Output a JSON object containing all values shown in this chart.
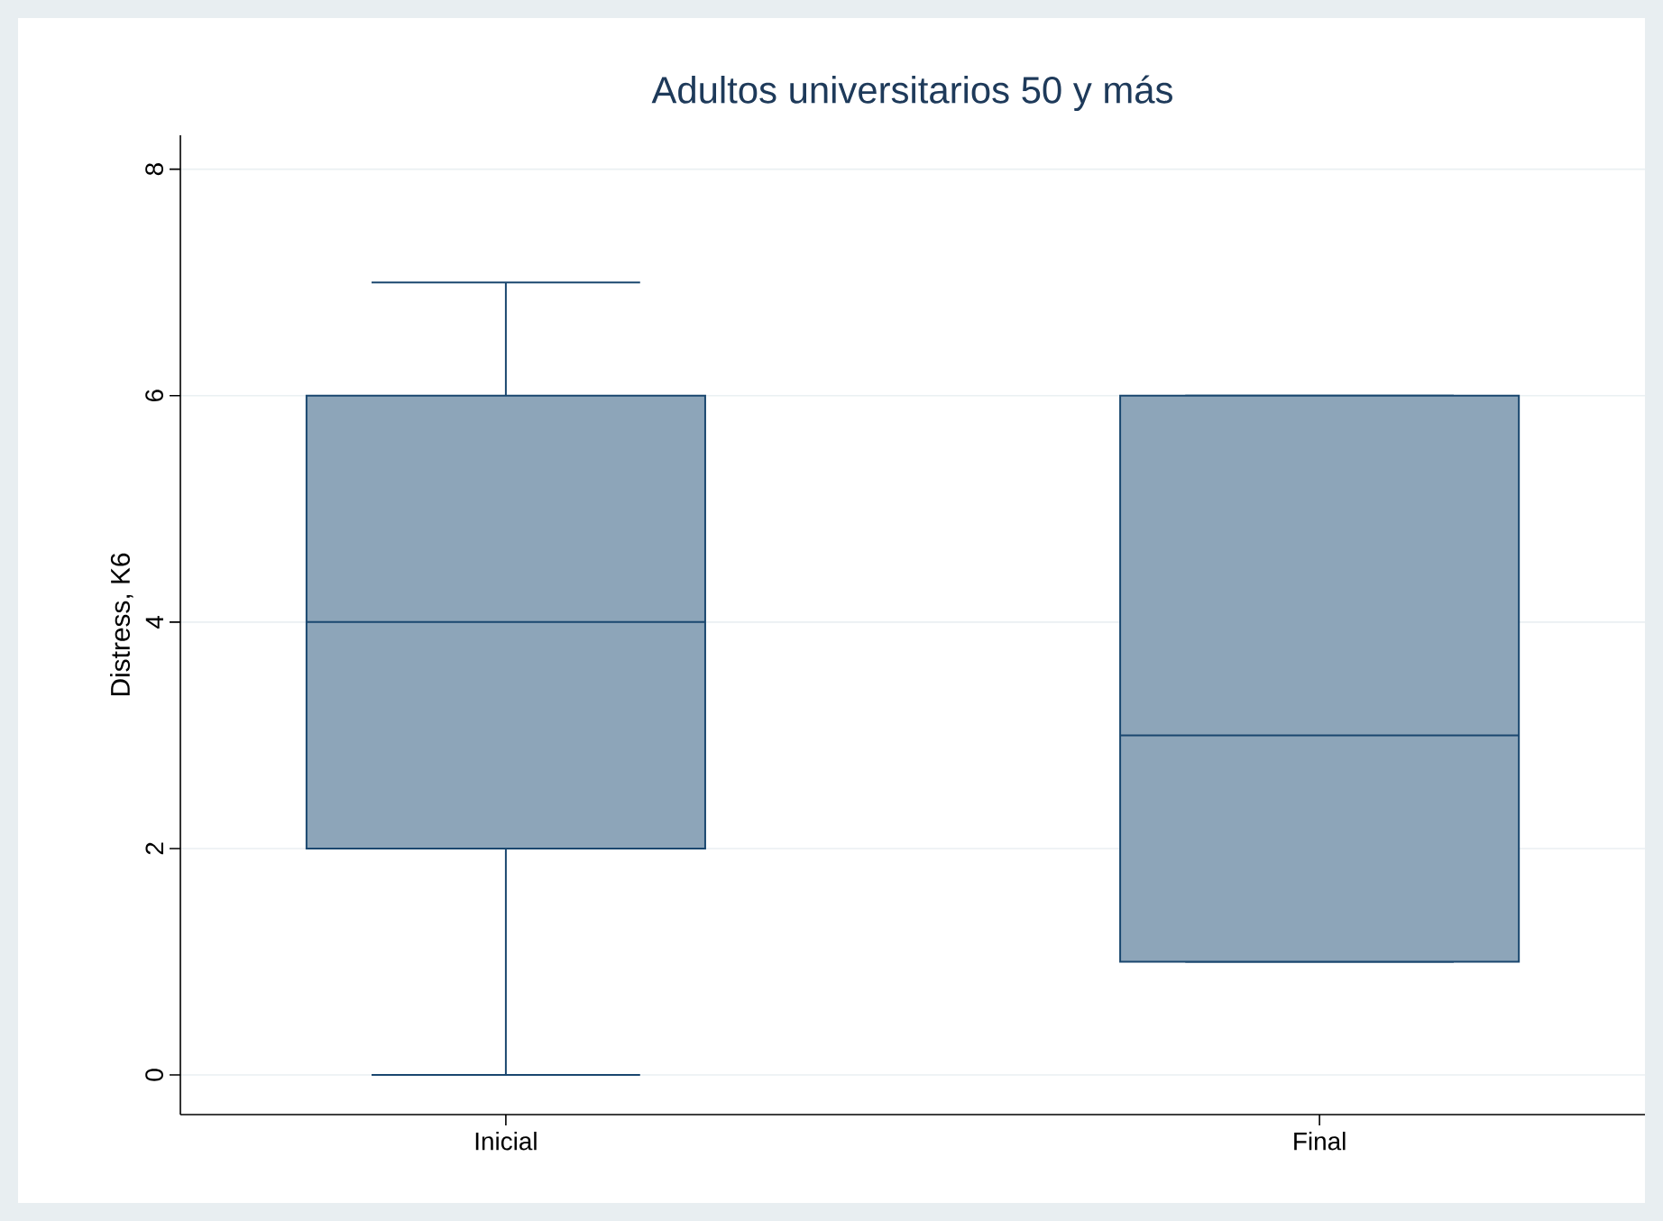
{
  "chart_data": {
    "type": "box",
    "title": "Adultos universitarios 50 y más",
    "ylabel": "Distress, K6",
    "categories": [
      "Inicial",
      "Final"
    ],
    "series": [
      {
        "color": "#8da5b9",
        "boxes": [
          {
            "low": 0,
            "q1": 2,
            "median": 4,
            "q3": 6,
            "high": 7
          },
          {
            "low": 1,
            "q1": 1,
            "median": 3,
            "q3": 6,
            "high": 6
          }
        ]
      }
    ],
    "ylim": [
      -0.35,
      8.3
    ],
    "yticks": [
      0,
      2,
      4,
      6,
      8
    ],
    "grid": "y"
  }
}
